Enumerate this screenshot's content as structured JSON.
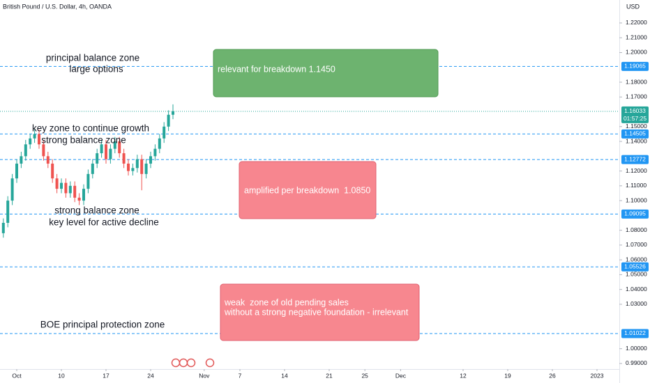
{
  "chart_data": {
    "type": "candlestick",
    "title": "British Pound / U.S. Dollar, 4h, OANDA",
    "currency_label": "USD",
    "up_color": "#26a69a",
    "down_color": "#ef5350",
    "x": [
      -1.5,
      -1.0,
      -0.5,
      0,
      0.5,
      1.0,
      1.5,
      2.0,
      2.5,
      3.0,
      3.5,
      4.0,
      4.5,
      5.0,
      5.5,
      6.0,
      6.5,
      7.0,
      7.5,
      8.0,
      8.5,
      9.0,
      9.5,
      10.0,
      10.5,
      11.0,
      11.5,
      12.0,
      12.5,
      13.0,
      13.5,
      14.0,
      14.5,
      15.0,
      15.5,
      16.0,
      16.5,
      17.0,
      17.5
    ],
    "open": [
      1.078,
      1.085,
      1.1,
      1.115,
      1.125,
      1.13,
      1.138,
      1.142,
      1.145,
      1.138,
      1.13,
      1.125,
      1.115,
      1.108,
      1.112,
      1.105,
      1.11,
      1.102,
      1.1,
      1.108,
      1.118,
      1.125,
      1.132,
      1.138,
      1.128,
      1.135,
      1.14,
      1.132,
      1.125,
      1.12,
      1.122,
      1.128,
      1.118,
      1.125,
      1.13,
      1.135,
      1.142,
      1.15,
      1.158
    ],
    "high": [
      1.088,
      1.103,
      1.118,
      1.128,
      1.133,
      1.141,
      1.145,
      1.148,
      1.148,
      1.141,
      1.133,
      1.128,
      1.118,
      1.115,
      1.115,
      1.113,
      1.113,
      1.105,
      1.111,
      1.121,
      1.128,
      1.135,
      1.141,
      1.141,
      1.138,
      1.143,
      1.143,
      1.135,
      1.128,
      1.125,
      1.131,
      1.131,
      1.128,
      1.133,
      1.138,
      1.145,
      1.153,
      1.161,
      1.165
    ],
    "low": [
      1.075,
      1.082,
      1.097,
      1.112,
      1.122,
      1.127,
      1.135,
      1.139,
      1.135,
      1.127,
      1.122,
      1.112,
      1.105,
      1.105,
      1.102,
      1.102,
      1.099,
      1.097,
      1.097,
      1.105,
      1.115,
      1.122,
      1.129,
      1.125,
      1.125,
      1.132,
      1.129,
      1.122,
      1.117,
      1.117,
      1.119,
      1.107,
      1.115,
      1.122,
      1.127,
      1.132,
      1.139,
      1.147,
      1.155
    ],
    "close": [
      1.085,
      1.1,
      1.115,
      1.125,
      1.13,
      1.138,
      1.142,
      1.145,
      1.138,
      1.13,
      1.125,
      1.115,
      1.108,
      1.112,
      1.105,
      1.11,
      1.102,
      1.1,
      1.108,
      1.118,
      1.125,
      1.132,
      1.138,
      1.128,
      1.135,
      1.14,
      1.132,
      1.125,
      1.12,
      1.122,
      1.128,
      1.118,
      1.125,
      1.13,
      1.135,
      1.142,
      1.15,
      1.158,
      1.1603
    ],
    "xlim": [
      -1.875,
      67.5
    ],
    "xticks": [
      {
        "value": 0,
        "label": "Oct"
      },
      {
        "value": 5,
        "label": "10"
      },
      {
        "value": 10,
        "label": "17"
      },
      {
        "value": 15,
        "label": "24"
      },
      {
        "value": 21,
        "label": "Nov"
      },
      {
        "value": 25,
        "label": "7"
      },
      {
        "value": 30,
        "label": "14"
      },
      {
        "value": 35,
        "label": "21"
      },
      {
        "value": 39,
        "label": "25"
      },
      {
        "value": 43,
        "label": "Dec"
      },
      {
        "value": 50,
        "label": "12"
      },
      {
        "value": 55,
        "label": "19"
      },
      {
        "value": 60,
        "label": "26"
      },
      {
        "value": 65,
        "label": "2023"
      }
    ],
    "ylim": [
      0.98623,
      1.2355
    ],
    "yticks": [
      {
        "value": 1.22,
        "label": "1.22000"
      },
      {
        "value": 1.21,
        "label": "1.21000"
      },
      {
        "value": 1.2,
        "label": "1.20000"
      },
      {
        "value": 1.18,
        "label": "1.18000"
      },
      {
        "value": 1.17,
        "label": "1.17000"
      },
      {
        "value": 1.15,
        "label": "1.15000"
      },
      {
        "value": 1.14,
        "label": "1.14000"
      },
      {
        "value": 1.12,
        "label": "1.12000"
      },
      {
        "value": 1.11,
        "label": "1.11000"
      },
      {
        "value": 1.1,
        "label": "1.10000"
      },
      {
        "value": 1.08,
        "label": "1.08000"
      },
      {
        "value": 1.07,
        "label": "1.07000"
      },
      {
        "value": 1.06,
        "label": "1.06000"
      },
      {
        "value": 1.05,
        "label": "1.05000"
      },
      {
        "value": 1.04,
        "label": "1.04000"
      },
      {
        "value": 1.03,
        "label": "1.03000"
      },
      {
        "value": 1.0,
        "label": "1.00000"
      },
      {
        "value": 0.99,
        "label": "0.99000"
      }
    ],
    "levels": [
      1.19065,
      1.14505,
      1.12772,
      1.09095,
      1.05526,
      1.01022
    ],
    "level_color": "#2196f3",
    "current_price": {
      "value": 1.16033,
      "countdown": "01:57:25"
    },
    "annotations": [
      "principal balance zone",
      "large options",
      "key zone to continue growth",
      "strong balance zone",
      "strong balance zone",
      "key level for active decline",
      "BOE principal protection zone"
    ],
    "boxes": [
      {
        "lines": [
          "relevant for breakdown 1.1450"
        ],
        "color": "#6db36f"
      },
      {
        "lines": [
          "amplified per breakdown  1.0850"
        ],
        "color": "#f7868f"
      },
      {
        "lines": [
          "weak  zone of old pending sales",
          "without a strong negative foundation - irrelevant"
        ],
        "color": "#f7878f"
      }
    ]
  }
}
